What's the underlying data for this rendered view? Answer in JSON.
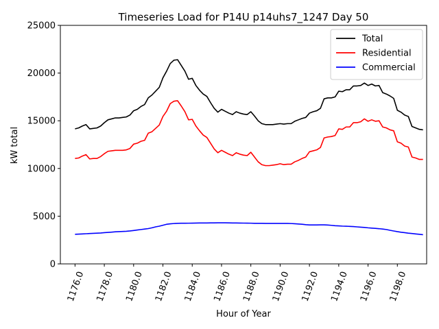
{
  "chart_data": {
    "type": "line",
    "title": "Timeseries Load for P14U p14uhs7_1247  Day 50",
    "xlabel": "Hour of Year",
    "ylabel": "kW total",
    "xlim": [
      1175.0,
      1200.0
    ],
    "ylim": [
      0,
      25000
    ],
    "xticks": [
      1176,
      1178,
      1180,
      1182,
      1184,
      1186,
      1188,
      1190,
      1192,
      1194,
      1196,
      1198
    ],
    "xtick_labels": [
      "1176.0",
      "1178.0",
      "1180.0",
      "1182.0",
      "1184.0",
      "1186.0",
      "1188.0",
      "1190.0",
      "1192.0",
      "1194.0",
      "1196.0",
      "1198.0"
    ],
    "yticks": [
      0,
      5000,
      10000,
      15000,
      20000,
      25000
    ],
    "ytick_labels": [
      "0",
      "5000",
      "10000",
      "15000",
      "20000",
      "25000"
    ],
    "legend_position": "top-right",
    "x": [
      1176.0,
      1176.25,
      1176.5,
      1176.75,
      1177.0,
      1177.25,
      1177.5,
      1177.75,
      1178.0,
      1178.25,
      1178.5,
      1178.75,
      1179.0,
      1179.25,
      1179.5,
      1179.75,
      1180.0,
      1180.25,
      1180.5,
      1180.75,
      1181.0,
      1181.25,
      1181.5,
      1181.75,
      1182.0,
      1182.25,
      1182.5,
      1182.75,
      1183.0,
      1183.25,
      1183.5,
      1183.75,
      1184.0,
      1184.25,
      1184.5,
      1184.75,
      1185.0,
      1185.25,
      1185.5,
      1185.75,
      1186.0,
      1186.25,
      1186.5,
      1186.75,
      1187.0,
      1187.25,
      1187.5,
      1187.75,
      1188.0,
      1188.25,
      1188.5,
      1188.75,
      1189.0,
      1189.25,
      1189.5,
      1189.75,
      1190.0,
      1190.25,
      1190.5,
      1190.75,
      1191.0,
      1191.25,
      1191.5,
      1191.75,
      1192.0,
      1192.25,
      1192.5,
      1192.75,
      1193.0,
      1193.25,
      1193.5,
      1193.75,
      1194.0,
      1194.25,
      1194.5,
      1194.75,
      1195.0,
      1195.25,
      1195.5,
      1195.75,
      1196.0,
      1196.25,
      1196.5,
      1196.75,
      1197.0,
      1197.25,
      1197.5,
      1197.75,
      1198.0,
      1198.25,
      1198.5,
      1198.75,
      1199.0,
      1199.25,
      1199.5,
      1199.75
    ],
    "series": [
      {
        "name": "Total",
        "color": "#000000",
        "values": [
          14150,
          14250,
          14450,
          14600,
          14150,
          14200,
          14250,
          14450,
          14800,
          15100,
          15200,
          15300,
          15300,
          15350,
          15400,
          15600,
          16050,
          16200,
          16500,
          16700,
          17400,
          17700,
          18100,
          18500,
          19500,
          20200,
          21000,
          21350,
          21400,
          20800,
          20200,
          19350,
          19450,
          18700,
          18200,
          17800,
          17550,
          16900,
          16300,
          15900,
          16200,
          16000,
          15800,
          15650,
          15950,
          15800,
          15700,
          15650,
          15950,
          15500,
          15000,
          14700,
          14600,
          14600,
          14600,
          14650,
          14700,
          14650,
          14700,
          14700,
          14950,
          15100,
          15250,
          15350,
          15800,
          15950,
          16050,
          16300,
          17300,
          17400,
          17400,
          17500,
          18100,
          18050,
          18250,
          18250,
          18650,
          18650,
          18700,
          18950,
          18700,
          18850,
          18650,
          18700,
          17950,
          17800,
          17600,
          17350,
          16100,
          15900,
          15600,
          15450,
          14400,
          14250,
          14100,
          14050
        ]
      },
      {
        "name": "Residential",
        "color": "#ff0000",
        "values": [
          11050,
          11100,
          11300,
          11450,
          11000,
          11050,
          11050,
          11250,
          11550,
          11800,
          11850,
          11900,
          11900,
          11900,
          11950,
          12100,
          12550,
          12650,
          12850,
          12950,
          13700,
          13850,
          14200,
          14550,
          15450,
          16000,
          16800,
          17050,
          17100,
          16550,
          15950,
          15100,
          15150,
          14450,
          13950,
          13500,
          13250,
          12650,
          12050,
          11650,
          11900,
          11700,
          11500,
          11350,
          11650,
          11500,
          11400,
          11350,
          11700,
          11200,
          10700,
          10400,
          10300,
          10300,
          10350,
          10400,
          10500,
          10400,
          10450,
          10450,
          10700,
          10850,
          11050,
          11200,
          11750,
          11850,
          11950,
          12200,
          13200,
          13300,
          13350,
          13450,
          14150,
          14100,
          14350,
          14350,
          14800,
          14800,
          14900,
          15200,
          14950,
          15100,
          14950,
          15000,
          14350,
          14250,
          14050,
          13950,
          12800,
          12650,
          12350,
          12250,
          11200,
          11100,
          10950,
          10950
        ]
      },
      {
        "name": "Commercial",
        "color": "#0000ff",
        "values": [
          3100,
          3120,
          3140,
          3160,
          3180,
          3200,
          3220,
          3240,
          3270,
          3300,
          3330,
          3360,
          3380,
          3400,
          3420,
          3450,
          3500,
          3550,
          3600,
          3650,
          3700,
          3780,
          3880,
          3950,
          4050,
          4150,
          4200,
          4230,
          4250,
          4260,
          4260,
          4265,
          4270,
          4280,
          4285,
          4290,
          4290,
          4300,
          4300,
          4305,
          4310,
          4305,
          4300,
          4290,
          4285,
          4280,
          4275,
          4270,
          4265,
          4255,
          4250,
          4250,
          4245,
          4245,
          4245,
          4245,
          4245,
          4240,
          4240,
          4230,
          4210,
          4180,
          4150,
          4110,
          4080,
          4080,
          4080,
          4090,
          4090,
          4070,
          4040,
          4000,
          3980,
          3960,
          3950,
          3930,
          3910,
          3880,
          3850,
          3820,
          3780,
          3750,
          3720,
          3690,
          3650,
          3600,
          3520,
          3450,
          3380,
          3320,
          3270,
          3220,
          3180,
          3140,
          3100,
          3060
        ]
      }
    ]
  }
}
